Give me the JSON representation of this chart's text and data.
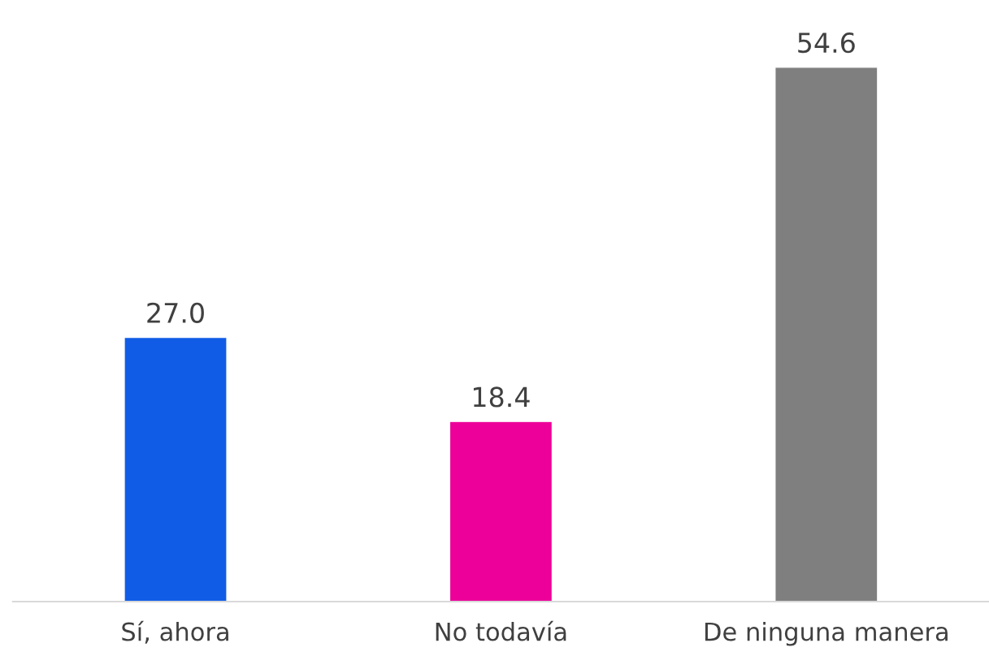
{
  "chart_data": {
    "type": "bar",
    "categories": [
      "Sí, ahora",
      "No todavía",
      "De ninguna manera"
    ],
    "values": [
      27.0,
      18.4,
      54.6
    ],
    "colors": [
      "#115ce6",
      "#ec0099",
      "#7f7f7f"
    ],
    "value_labels": [
      "27.0",
      "18.4",
      "54.6"
    ],
    "grid": false,
    "legend": false
  }
}
